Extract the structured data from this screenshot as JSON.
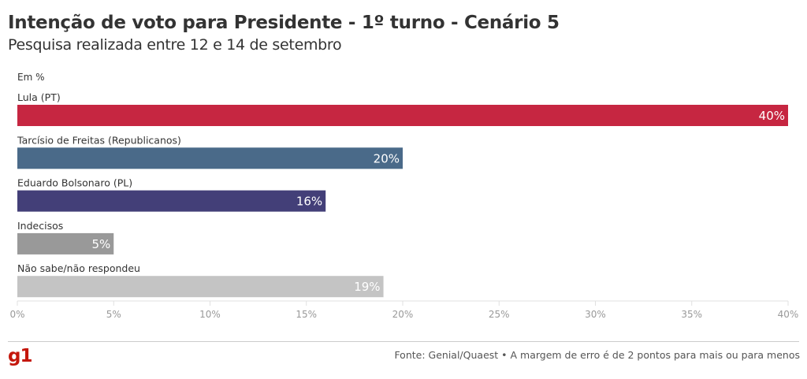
{
  "chart_data": {
    "type": "bar",
    "orientation": "horizontal",
    "title": "Intenção de voto para Presidente - 1º turno - Cenário 5",
    "subtitle": "Pesquisa realizada entre 12 e 14 de setembro",
    "unit_label": "Em %",
    "categories": [
      "Lula (PT)",
      "Tarcísio de Freitas (Republicanos)",
      "Eduardo Bolsonaro (PL)",
      "Indecisos",
      "Não sabe/não respondeu"
    ],
    "values": [
      40,
      20,
      16,
      5,
      19
    ],
    "value_labels": [
      "40%",
      "20%",
      "16%",
      "5%",
      "19%"
    ],
    "colors": [
      "#c62641",
      "#4a6a89",
      "#433f78",
      "#999999",
      "#c4c4c4"
    ],
    "xlim": [
      0,
      40
    ],
    "ticks": [
      0,
      5,
      10,
      15,
      20,
      25,
      30,
      35,
      40
    ],
    "tick_labels": [
      "0%",
      "5%",
      "10%",
      "15%",
      "20%",
      "25%",
      "30%",
      "35%",
      "40%"
    ]
  },
  "footer": {
    "logo": "g1",
    "source": "Fonte: Genial/Quaest • A margem de erro é de 2 pontos para mais ou para menos"
  }
}
